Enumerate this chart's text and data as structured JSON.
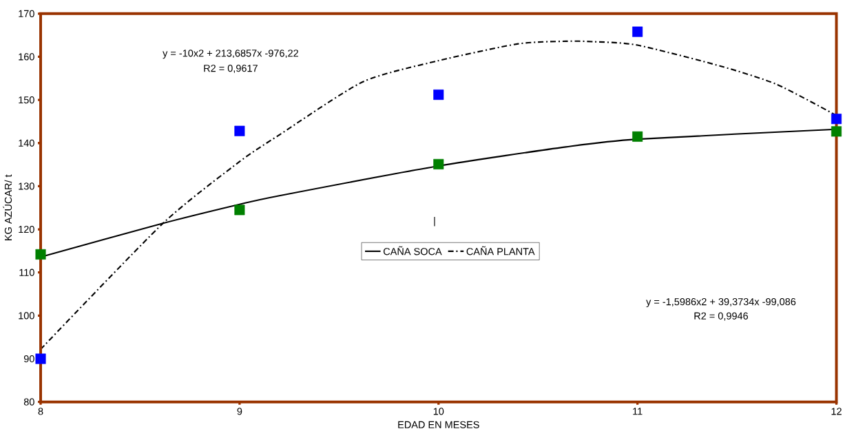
{
  "chart_data": {
    "type": "scatter",
    "xlabel": "EDAD EN MESES",
    "ylabel": "KG AZÚCAR/ t",
    "xlim": [
      8,
      12
    ],
    "ylim": [
      80,
      170
    ],
    "xticks": [
      8,
      9,
      10,
      11,
      12
    ],
    "yticks": [
      80,
      90,
      100,
      110,
      120,
      130,
      140,
      150,
      160,
      170
    ],
    "grid": false,
    "legend": "center",
    "marker": "square",
    "annotations": [
      "y = -10x2 + 213,6857x -976,22",
      "R2 = 0,9617",
      "y = -1,5986x2 + 39,3734x -99,086",
      "R2 = 0,9946",
      "|"
    ],
    "series": [
      {
        "color": "#008000",
        "x": [
          8,
          9,
          10,
          11,
          12
        ],
        "values": [
          114.2,
          124.5,
          135.1,
          141.5,
          142.7
        ]
      },
      {
        "color": "#0000ff",
        "x": [
          8,
          9,
          10,
          11,
          12
        ],
        "values": [
          90,
          142.8,
          151.2,
          165.8,
          145.6
        ]
      },
      {
        "type": "line",
        "name": "CAÑA SOCA",
        "color": "#000000",
        "marker": "none",
        "line_style": "solid",
        "x": [
          8,
          8.615,
          9,
          9.2,
          10,
          10.64,
          11,
          12
        ],
        "values": [
          113.6,
          121.4,
          125.8,
          127.8,
          134.7,
          139.1,
          140.9,
          143.2
        ]
      },
      {
        "type": "line",
        "name": "CAÑA PLANTA",
        "color": "#000000",
        "marker": "none",
        "line_style": "dashed",
        "x": [
          8,
          8.615,
          9,
          9.2,
          9.62,
          10,
          10.4,
          10.64,
          10.78,
          11,
          11.42,
          11.7,
          12
        ],
        "values": [
          92.2,
          121.4,
          135.7,
          141.9,
          154.2,
          159.1,
          163,
          163.6,
          163.5,
          162.7,
          157.8,
          153.6,
          146.4
        ]
      }
    ]
  }
}
